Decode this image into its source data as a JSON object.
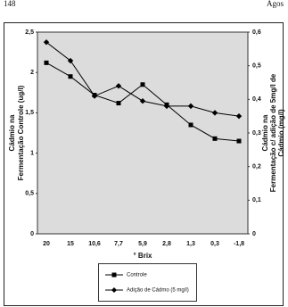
{
  "page_header": {
    "left": "148",
    "right": "Agos"
  },
  "chart_data": {
    "type": "line",
    "xlabel": "° Brix",
    "ylabel": [
      "Cádmio na",
      "Fermentação Controle (ug/l)"
    ],
    "y2label": [
      "Cádmio na",
      "Fermentação c/ adição de 5mg/l de",
      "Cádmio (mg/l)"
    ],
    "categories": [
      "20",
      "15",
      "10,6",
      "7,7",
      "5,9",
      "2,8",
      "1,3",
      "0,3",
      "-1,8"
    ],
    "series": [
      {
        "name": "Controle",
        "color": "#000000",
        "marker": "square",
        "values": [
          2.12,
          1.95,
          1.72,
          1.62,
          1.85,
          1.6,
          1.35,
          1.18,
          1.15
        ]
      },
      {
        "name": "Adição de Cádmo (5 mg/l)",
        "color": "#000000",
        "marker": "diamond",
        "axis": "y2",
        "values": [
          0.57,
          0.515,
          0.41,
          0.44,
          0.395,
          0.38,
          0.38,
          0.36,
          0.35
        ]
      }
    ],
    "ylim": [
      0,
      2.5
    ],
    "yticks": [
      0,
      {
        "value": 0.5,
        "label": "0,5"
      },
      1,
      {
        "value": 1.5,
        "label": "1,5"
      },
      2,
      {
        "value": 2.5,
        "label": "2,5"
      }
    ],
    "y2lim": [
      0,
      0.6
    ],
    "y2ticks": [
      0,
      {
        "value": 0.1,
        "label": "0,1"
      },
      {
        "value": 0.2,
        "label": "0,2"
      },
      {
        "value": 0.3,
        "label": "0,3"
      },
      {
        "value": 0.4,
        "label": "0,4"
      },
      {
        "value": 0.5,
        "label": "0,5"
      },
      {
        "value": 0.6,
        "label": "0,6"
      }
    ],
    "grid": false
  }
}
